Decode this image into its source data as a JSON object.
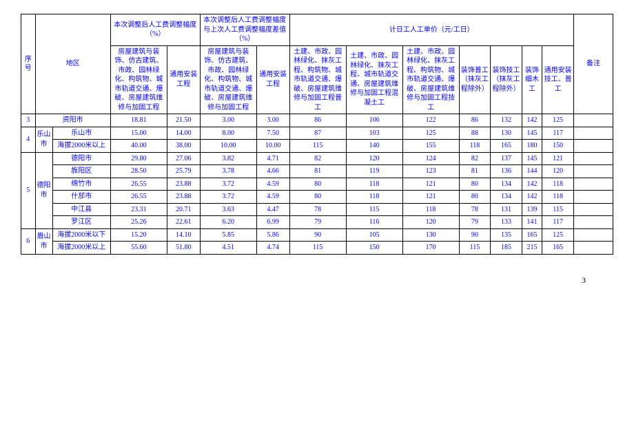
{
  "page_number": "3",
  "header": {
    "seq": "序号",
    "area": "地区",
    "adj_this_title": "本次调整后人工费调整幅度（%）",
    "adj_diff_title": "本次调整后人工费调整幅度与上次人工费调整幅度差值（%）",
    "daywork_title": "计日工人工单价（元/工日）",
    "note": "备注",
    "building_a": "房屋建筑与装饰、仿古建筑、市政、园林绿化、构筑物、城市轨道交通、爆破、房屋建筑维修与加固工程",
    "install_a": "通用安装工程",
    "building_b": "房屋建筑与装饰、仿古建筑、市政、园林绿化、构筑物、城市轨道交通、爆破、房屋建筑维修与加固工程",
    "install_b": "通用安装工程",
    "p1": "土建、市政、园林绿化、抹灰工程、构筑物、城市轨道交通、爆破、房屋建筑维修与加固工程普工",
    "p2": "土建、市政、园林绿化、抹灰工程、城市轨道交通、房屋建筑维修与加固工程混凝土工",
    "p3": "土建、市政、园林绿化、抹灰工程、构筑物、城市轨道交通、爆破、房屋建筑维修与加固工程技工",
    "p4": "装饰普工（抹灰工程除外）",
    "p5": "装饰技工（抹灰工程除外）",
    "p6": "装饰细木工",
    "p7": "通用安装技工、普工"
  },
  "rows": [
    {
      "idx": "3",
      "area1": "",
      "area2": "资阳市",
      "area1_span": 1,
      "area2_colspan": 2,
      "a": "18.81",
      "b": "21.50",
      "c": "3.00",
      "d": "3.00",
      "p1": "86",
      "p2": "106",
      "p3": "122",
      "p4": "86",
      "p5": "132",
      "p6": "142",
      "p7": "125",
      "note": ""
    },
    {
      "idx": "4",
      "area1": "乐山市",
      "area2": "乐山市",
      "area1_span": 2,
      "area2_colspan": 1,
      "a": "15.00",
      "b": "14.00",
      "c": "8.00",
      "d": "7.50",
      "p1": "87",
      "p2": "103",
      "p3": "125",
      "p4": "88",
      "p5": "130",
      "p6": "145",
      "p7": "117",
      "note": ""
    },
    {
      "idx": "",
      "area1": "",
      "area2": "海拔2000米以上",
      "a": "40.00",
      "b": "38.00",
      "c": "10.00",
      "d": "10.00",
      "p1": "115",
      "p2": "140",
      "p3": "155",
      "p4": "118",
      "p5": "165",
      "p6": "180",
      "p7": "150",
      "note": ""
    },
    {
      "idx": "5",
      "area1": "德阳市",
      "area2": "德阳市",
      "area1_span": 6,
      "area2_colspan": 1,
      "a": "29.80",
      "b": "27.06",
      "c": "3.82",
      "d": "4.71",
      "p1": "82",
      "p2": "120",
      "p3": "124",
      "p4": "82",
      "p5": "137",
      "p6": "145",
      "p7": "121",
      "note": ""
    },
    {
      "idx": "",
      "area1": "",
      "area2": "旌阳区",
      "a": "28.50",
      "b": "25.79",
      "c": "3.78",
      "d": "4.66",
      "p1": "81",
      "p2": "119",
      "p3": "123",
      "p4": "81",
      "p5": "136",
      "p6": "144",
      "p7": "120",
      "note": ""
    },
    {
      "idx": "",
      "area1": "",
      "area2": "绵竹市",
      "a": "26.55",
      "b": "23.88",
      "c": "3.72",
      "d": "4.59",
      "p1": "80",
      "p2": "118",
      "p3": "121",
      "p4": "80",
      "p5": "134",
      "p6": "142",
      "p7": "118",
      "note": ""
    },
    {
      "idx": "",
      "area1": "",
      "area2": "什邡市",
      "a": "26.55",
      "b": "23.88",
      "c": "3.72",
      "d": "4.59",
      "p1": "80",
      "p2": "118",
      "p3": "121",
      "p4": "80",
      "p5": "134",
      "p6": "142",
      "p7": "118",
      "note": ""
    },
    {
      "idx": "",
      "area1": "",
      "area2": "中江县",
      "a": "23.31",
      "b": "20.71",
      "c": "3.63",
      "d": "4.47",
      "p1": "78",
      "p2": "115",
      "p3": "118",
      "p4": "78",
      "p5": "131",
      "p6": "139",
      "p7": "115",
      "note": ""
    },
    {
      "idx": "",
      "area1": "",
      "area2": "罗江区",
      "a": "25.26",
      "b": "22.61",
      "c": "6.20",
      "d": "6.99",
      "p1": "79",
      "p2": "116",
      "p3": "120",
      "p4": "79",
      "p5": "133",
      "p6": "141",
      "p7": "117",
      "note": ""
    },
    {
      "idx": "6",
      "area1": "眉山市",
      "area2": "海拔2000米以下",
      "area1_span": 2,
      "area2_colspan": 1,
      "a": "15.20",
      "b": "14.10",
      "c": "5.85",
      "d": "5.86",
      "p1": "90",
      "p2": "105",
      "p3": "130",
      "p4": "90",
      "p5": "135",
      "p6": "165",
      "p7": "125",
      "note": ""
    },
    {
      "idx": "",
      "area1": "",
      "area2": "海拔2000米以上",
      "a": "55.60",
      "b": "51.80",
      "c": "4.51",
      "d": "4.74",
      "p1": "115",
      "p2": "150",
      "p3": "170",
      "p4": "115",
      "p5": "185",
      "p6": "215",
      "p7": "165",
      "note": ""
    }
  ]
}
